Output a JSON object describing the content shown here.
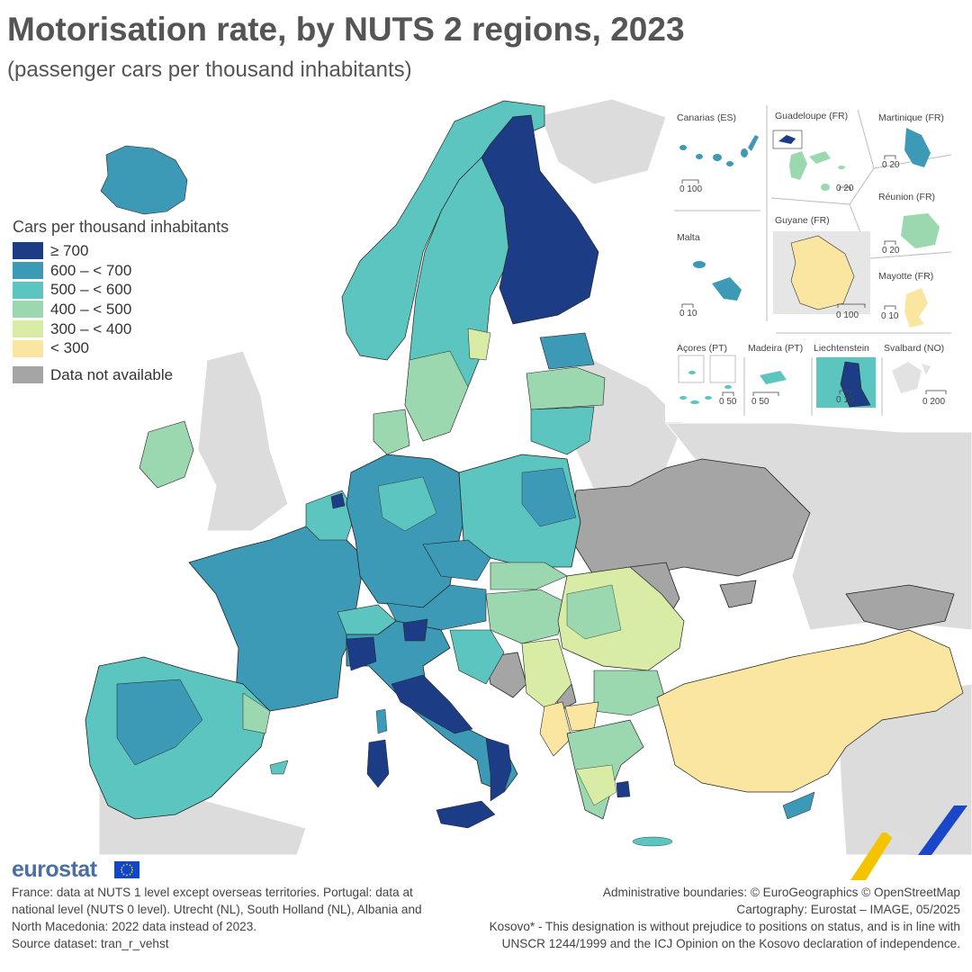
{
  "header": {
    "title": "Motorisation rate, by NUTS 2 regions, 2023",
    "subtitle": "(passenger cars per thousand inhabitants)"
  },
  "legend": {
    "title": "Cars per thousand inhabitants",
    "classes": [
      {
        "label": "≥ 700",
        "color": "#1c3d86"
      },
      {
        "label": "600 – < 700",
        "color": "#3c9ab6"
      },
      {
        "label": "500 – < 600",
        "color": "#5cc5c0"
      },
      {
        "label": "400 – < 500",
        "color": "#9bd8b0"
      },
      {
        "label": "300 – < 400",
        "color": "#d9eca6"
      },
      {
        "label": "< 300",
        "color": "#fae6a0"
      }
    ],
    "not_available": {
      "label": "Data not available",
      "color": "#a5a5a5"
    }
  },
  "map_colors": {
    "sea": "#ffffff",
    "non_member": "#dcdcdc",
    "border": "#222222"
  },
  "insets": [
    {
      "name": "Canarias (ES)",
      "scale": "0  100",
      "color": "#3c9ab6"
    },
    {
      "name": "Guadeloupe (FR)",
      "scale": "0  20",
      "color": "#9bd8b0"
    },
    {
      "name": "Martinique (FR)",
      "scale": "0  20",
      "color": "#3c9ab6"
    },
    {
      "name": "Réunion (FR)",
      "scale": "0  20",
      "color": "#9bd8b0"
    },
    {
      "name": "Malta",
      "scale": "0  10",
      "color": "#3c9ab6"
    },
    {
      "name": "Guyane (FR)",
      "scale": "0   100",
      "color": "#fae6a0"
    },
    {
      "name": "Mayotte (FR)",
      "scale": "0 10",
      "color": "#fae6a0"
    },
    {
      "name": "Açores (PT)",
      "scale": "0  50",
      "color": "#5cc5c0"
    },
    {
      "name": "Madeira (PT)",
      "scale": "0    50",
      "color": "#5cc5c0"
    },
    {
      "name": "Liechtenstein",
      "scale": "0  10",
      "color": "#1c3d86"
    },
    {
      "name": "Svalbard (NO)",
      "scale": "0    200",
      "color": "#dcdcdc"
    }
  ],
  "footer": {
    "brand": "eurostat",
    "notes_left": [
      "France: data at NUTS 1 level except overseas territories. Portugal: data at",
      "national level (NUTS 0 level). Utrecht (NL), South Holland (NL), Albania and",
      "North Macedonia: 2022 data instead of 2023.",
      "Source dataset: tran_r_vehst"
    ],
    "notes_right": [
      "Administrative boundaries: © EuroGeographics © OpenStreetMap",
      "Cartography: Eurostat – IMAGE, 05/2025",
      "Kosovo* - This designation is without prejudice to positions on status, and is in line with",
      "UNSCR 1244/1999 and the ICJ Opinion on the Kosovo declaration of independence."
    ]
  }
}
